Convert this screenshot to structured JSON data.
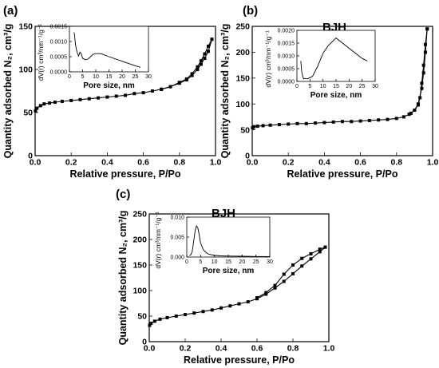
{
  "chart_data": [
    {
      "type": "line",
      "panel_label": "(a)",
      "annotation": "BJH",
      "xlabel": "Relative pressure, P/Po",
      "ylabel": "Quantity adsorbed N₂, cm³/g",
      "xlim": [
        0.0,
        1.0
      ],
      "ylim": [
        0,
        150
      ],
      "xticks": [
        "0.0",
        "0.2",
        "0.4",
        "0.6",
        "0.8",
        "1.0"
      ],
      "yticks": [
        "0",
        "50",
        "100",
        "150"
      ],
      "series": [
        {
          "x": [
            0.002,
            0.01,
            0.03,
            0.05,
            0.08,
            0.11,
            0.15,
            0.2,
            0.25,
            0.3,
            0.35,
            0.4,
            0.45,
            0.5,
            0.55,
            0.6,
            0.65,
            0.7,
            0.75,
            0.8,
            0.84,
            0.87,
            0.9,
            0.92,
            0.94,
            0.96,
            0.98
          ],
          "y": [
            52,
            55,
            58,
            60,
            61,
            62,
            63,
            64,
            65,
            66,
            67,
            68,
            69,
            70,
            72,
            73,
            75,
            77,
            80,
            84,
            88,
            93,
            100,
            106,
            113,
            121,
            135
          ]
        },
        {
          "x": [
            0.98,
            0.96,
            0.94,
            0.92,
            0.9,
            0.87,
            0.84,
            0.8,
            0.75,
            0.7
          ],
          "y": [
            135,
            127,
            118,
            110,
            103,
            95,
            89,
            85,
            80,
            77
          ]
        }
      ],
      "inset": {
        "type": "line",
        "xlabel": "Pore size, nm",
        "ylabel": "dV(r) cm³/nm⁻¹/g⁻¹",
        "xlim": [
          0,
          30
        ],
        "ylim": [
          0,
          0.0015
        ],
        "xticks": [
          "0",
          "5",
          "10",
          "15",
          "20",
          "25",
          "30"
        ],
        "yticks": [
          "0.0000",
          "0.0005",
          "0.0010",
          "0.0015"
        ],
        "x": [
          1.8,
          2.0,
          2.3,
          2.6,
          3.0,
          3.5,
          4.0,
          4.5,
          5.0,
          6.0,
          7.0,
          8.0,
          9.0,
          10.0,
          12.0,
          15.0,
          20.0,
          25.0,
          27.0
        ],
        "y": [
          0.0013,
          0.00115,
          0.0009,
          0.00075,
          0.00062,
          0.00052,
          0.00065,
          0.0006,
          0.00045,
          0.0004,
          0.00042,
          0.0005,
          0.00058,
          0.0006,
          0.0006,
          0.0005,
          0.00035,
          0.0002,
          0.00015
        ]
      }
    },
    {
      "type": "line",
      "panel_label": "(b)",
      "annotation": "BJH",
      "xlabel": "Relative pressure, P/Po",
      "ylabel": "Quantity adsorbed N₂, cm³/g",
      "xlim": [
        0.0,
        1.0
      ],
      "ylim": [
        0,
        250
      ],
      "xticks": [
        "0.0",
        "0.2",
        "0.4",
        "0.6",
        "0.8",
        "1.0"
      ],
      "yticks": [
        "0",
        "50",
        "100",
        "150",
        "200",
        "250"
      ],
      "series": [
        {
          "x": [
            0.002,
            0.01,
            0.03,
            0.06,
            0.1,
            0.15,
            0.2,
            0.25,
            0.3,
            0.35,
            0.4,
            0.45,
            0.5,
            0.55,
            0.6,
            0.65,
            0.7,
            0.75,
            0.8,
            0.84,
            0.87,
            0.9,
            0.92,
            0.94,
            0.95,
            0.96,
            0.97
          ],
          "y": [
            54,
            56,
            57,
            58,
            59,
            60,
            61,
            62,
            62,
            63,
            64,
            65,
            66,
            66,
            67,
            68,
            69,
            70,
            72,
            75,
            80,
            88,
            100,
            130,
            160,
            200,
            245
          ]
        },
        {
          "x": [
            0.97,
            0.96,
            0.95,
            0.94,
            0.93,
            0.92,
            0.9,
            0.88
          ],
          "y": [
            245,
            215,
            175,
            140,
            112,
            98,
            88,
            82
          ]
        }
      ],
      "inset": {
        "type": "line",
        "xlabel": "Pore size, nm",
        "ylabel": "dV(r) cm³/nm⁻¹/g⁻¹",
        "xlim": [
          0,
          30
        ],
        "ylim": [
          0,
          0.002
        ],
        "xticks": [
          "0",
          "5",
          "10",
          "15",
          "20",
          "25",
          "30"
        ],
        "yticks": [
          "0.0000",
          "0.0005",
          "0.0010",
          "0.0015",
          "0.0020"
        ],
        "x": [
          1.5,
          1.8,
          2.2,
          2.6,
          3.0,
          4.0,
          5.0,
          6.0,
          8.0,
          10.0,
          12.0,
          15.0,
          20.0,
          25.0,
          27.0
        ],
        "y": [
          0.0008,
          0.0004,
          0.0002,
          0.0001,
          0.00012,
          0.0001,
          0.00015,
          0.0002,
          0.0006,
          0.0011,
          0.0014,
          0.0017,
          0.0013,
          0.0009,
          0.0008
        ]
      }
    },
    {
      "type": "line",
      "panel_label": "(c)",
      "annotation": "BJH",
      "xlabel": "Relative pressure, P/Po",
      "ylabel": "Quantity adsorbed N₂, cm³/g",
      "xlim": [
        0.0,
        1.0
      ],
      "ylim": [
        0,
        250
      ],
      "xticks": [
        "0.0",
        "0.2",
        "0.4",
        "0.6",
        "0.8",
        "1.0"
      ],
      "yticks": [
        "0",
        "50",
        "100",
        "150",
        "200",
        "250"
      ],
      "series": [
        {
          "x": [
            0.002,
            0.01,
            0.03,
            0.06,
            0.1,
            0.15,
            0.2,
            0.25,
            0.3,
            0.35,
            0.4,
            0.45,
            0.5,
            0.55,
            0.6,
            0.65,
            0.7,
            0.75,
            0.8,
            0.85,
            0.9,
            0.95,
            0.98
          ],
          "y": [
            32,
            36,
            40,
            44,
            47,
            50,
            53,
            56,
            59,
            62,
            66,
            70,
            74,
            78,
            84,
            93,
            105,
            118,
            133,
            148,
            162,
            176,
            185
          ]
        },
        {
          "x": [
            0.98,
            0.95,
            0.9,
            0.85,
            0.8,
            0.75,
            0.7,
            0.65,
            0.6
          ],
          "y": [
            185,
            181,
            172,
            163,
            150,
            132,
            110,
            96,
            86
          ]
        }
      ],
      "inset": {
        "type": "line",
        "xlabel": "Pore size, nm",
        "ylabel": "dV(r) cm³/nm⁻¹/g⁻¹",
        "xlim": [
          0,
          30
        ],
        "ylim": [
          0,
          0.01
        ],
        "xticks": [
          "0",
          "5",
          "10",
          "15",
          "20",
          "25",
          "30"
        ],
        "yticks": [
          "0.000",
          "0.005",
          "0.010"
        ],
        "x": [
          1.0,
          1.5,
          2.0,
          2.5,
          3.0,
          3.5,
          4.0,
          4.5,
          5.0,
          6.0,
          7.0,
          8.0,
          10.0,
          12.0,
          15.0,
          20.0,
          25.0,
          30.0
        ],
        "y": [
          0.0003,
          0.0006,
          0.0015,
          0.004,
          0.0065,
          0.0078,
          0.0073,
          0.0055,
          0.0035,
          0.0018,
          0.0011,
          0.0007,
          0.0004,
          0.0003,
          0.00025,
          0.0002,
          0.00015,
          0.0001
        ]
      }
    }
  ]
}
